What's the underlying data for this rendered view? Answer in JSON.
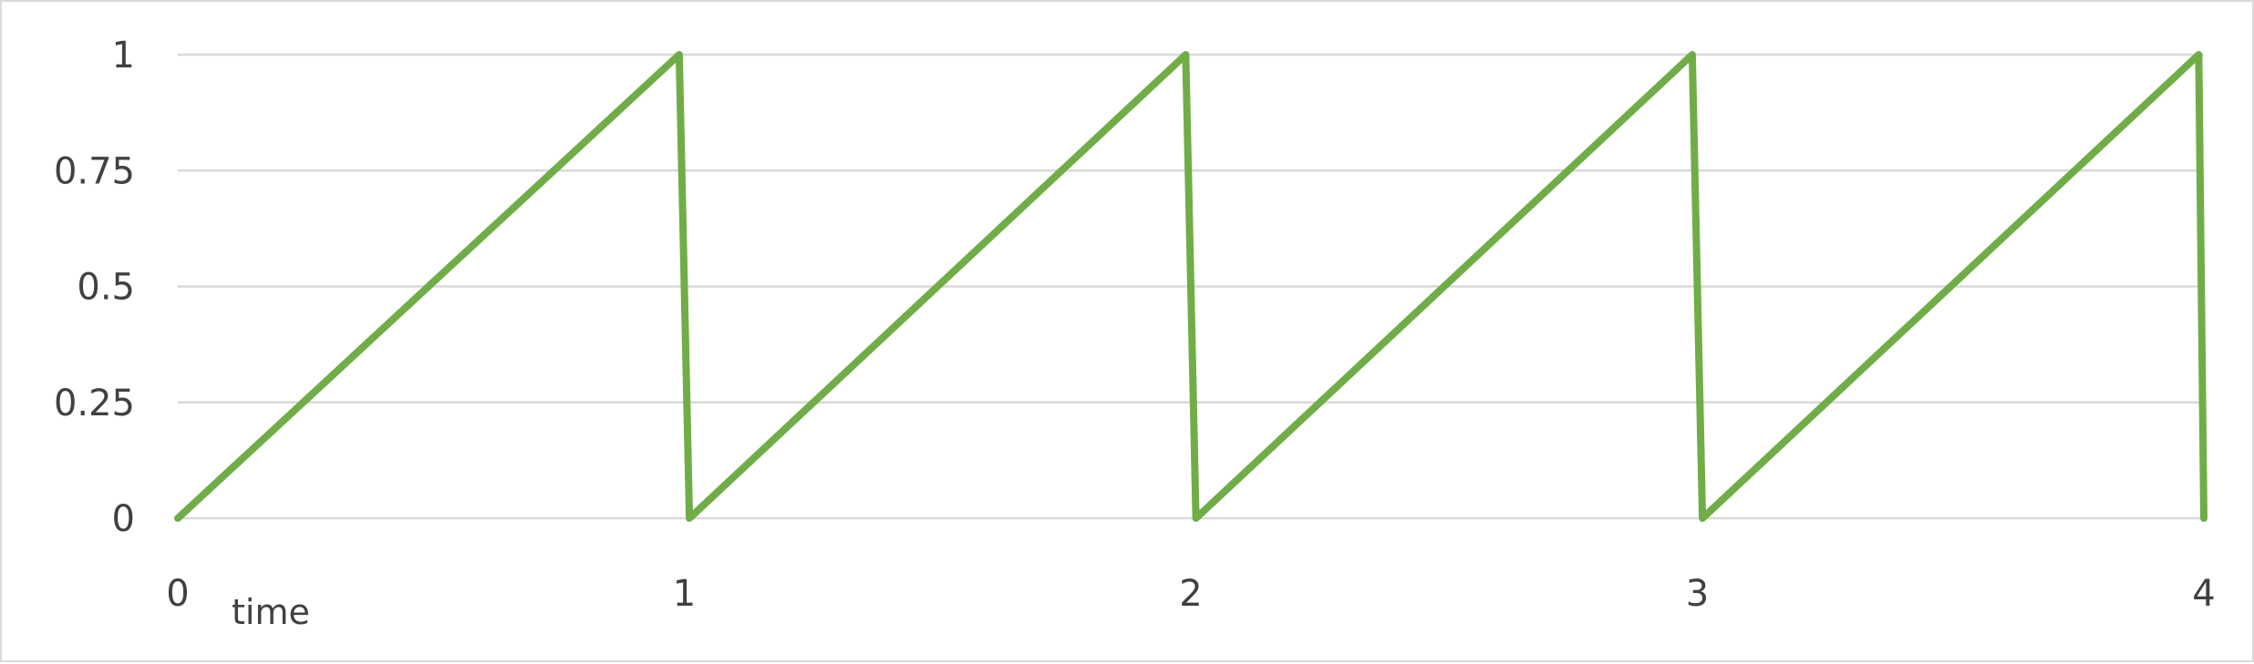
{
  "chart_data": {
    "type": "line",
    "title": "",
    "xlabel": "time",
    "ylabel": "",
    "xlim": [
      0,
      4
    ],
    "ylim": [
      0,
      1
    ],
    "x_ticks": [
      "0",
      "1",
      "2",
      "3",
      "4"
    ],
    "y_ticks": [
      "0",
      "0.25",
      "0.5",
      "0.75",
      "1"
    ],
    "grid": true,
    "legend": "none",
    "series": [
      {
        "color": "#70ad47",
        "x": [
          0,
          0.99,
          1.01,
          1.99,
          2.01,
          2.99,
          3.01,
          3.99,
          4.0
        ],
        "y": [
          0,
          1,
          0,
          1,
          0,
          1,
          0,
          1,
          0
        ]
      }
    ]
  }
}
